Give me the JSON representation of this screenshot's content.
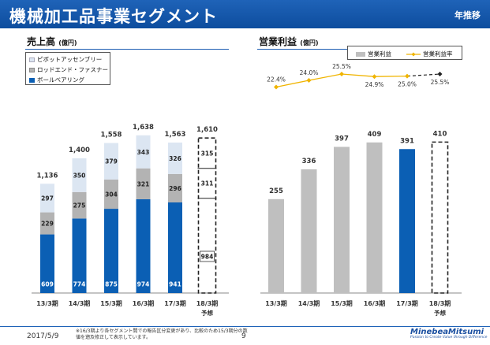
{
  "header": {
    "title": "機械加工品事業セグメント",
    "trend_label": "年推移"
  },
  "sales": {
    "title": "売上高",
    "unit": "(億円)",
    "legend": [
      {
        "label": "ピボットアッセンブリー",
        "color": "#dce6f2"
      },
      {
        "label": "ロッドエンド・ファスナー",
        "color": "#b3b3b3"
      },
      {
        "label": "ボールベアリング",
        "color": "#0b5fb4"
      }
    ]
  },
  "profit": {
    "title": "営業利益",
    "unit": "(億円)",
    "legend": [
      {
        "label": "営業利益",
        "color": "#bfbfbf"
      },
      {
        "label": "営業利益率",
        "color": "#f0b400"
      }
    ]
  },
  "chart_data": [
    {
      "type": "bar",
      "stacked": true,
      "title": "売上高 (億円)",
      "categories": [
        "13/3期",
        "14/3期",
        "15/3期",
        "16/3期",
        "17/3期",
        "18/3期"
      ],
      "category_sub": [
        "",
        "",
        "",
        "",
        "",
        "予想"
      ],
      "series": [
        {
          "name": "ボールベアリング",
          "values": [
            609,
            774,
            875,
            974,
            941,
            984
          ]
        },
        {
          "name": "ロッドエンド・ファスナー",
          "values": [
            229,
            275,
            304,
            321,
            296,
            311
          ]
        },
        {
          "name": "ピボットアッセンブリー",
          "values": [
            297,
            350,
            379,
            343,
            326,
            315
          ]
        }
      ],
      "totals": [
        "1,136",
        "1,400",
        "1,558",
        "1,638",
        "1,563",
        "1,610"
      ],
      "forecast_index": 5,
      "ylim": [
        0,
        1800
      ]
    },
    {
      "type": "bar",
      "title": "営業利益 (億円)",
      "categories": [
        "13/3期",
        "14/3期",
        "15/3期",
        "16/3期",
        "17/3期",
        "18/3期"
      ],
      "category_sub": [
        "",
        "",
        "",
        "",
        "",
        "予想"
      ],
      "series": [
        {
          "name": "営業利益",
          "values": [
            255,
            336,
            397,
            409,
            391,
            410
          ]
        }
      ],
      "highlight_index": 4,
      "forecast_index": 5,
      "ylim": [
        0,
        460
      ]
    },
    {
      "type": "line",
      "title": "営業利益率",
      "categories": [
        "13/3期",
        "14/3期",
        "15/3期",
        "16/3期",
        "17/3期",
        "18/3期"
      ],
      "series": [
        {
          "name": "営業利益率",
          "values": [
            22.4,
            24.0,
            25.5,
            24.9,
            25.0,
            25.5
          ]
        }
      ],
      "labels": [
        "22.4%",
        "24.0%",
        "25.5%",
        "24.9%",
        "25.0%",
        "25.5%"
      ],
      "forecast_index": 5,
      "ylim": [
        21,
        27
      ]
    }
  ],
  "footer": {
    "date": "2017/5/9",
    "note": "※16/3期より各セグメント間での報告区分変更があり、比較のため15/3期分の数値を遡及修正して表示しています。",
    "page": "9",
    "logo_name": "MinebeaMitsumi",
    "logo_tagline": "Passion to Create Value through Difference"
  }
}
